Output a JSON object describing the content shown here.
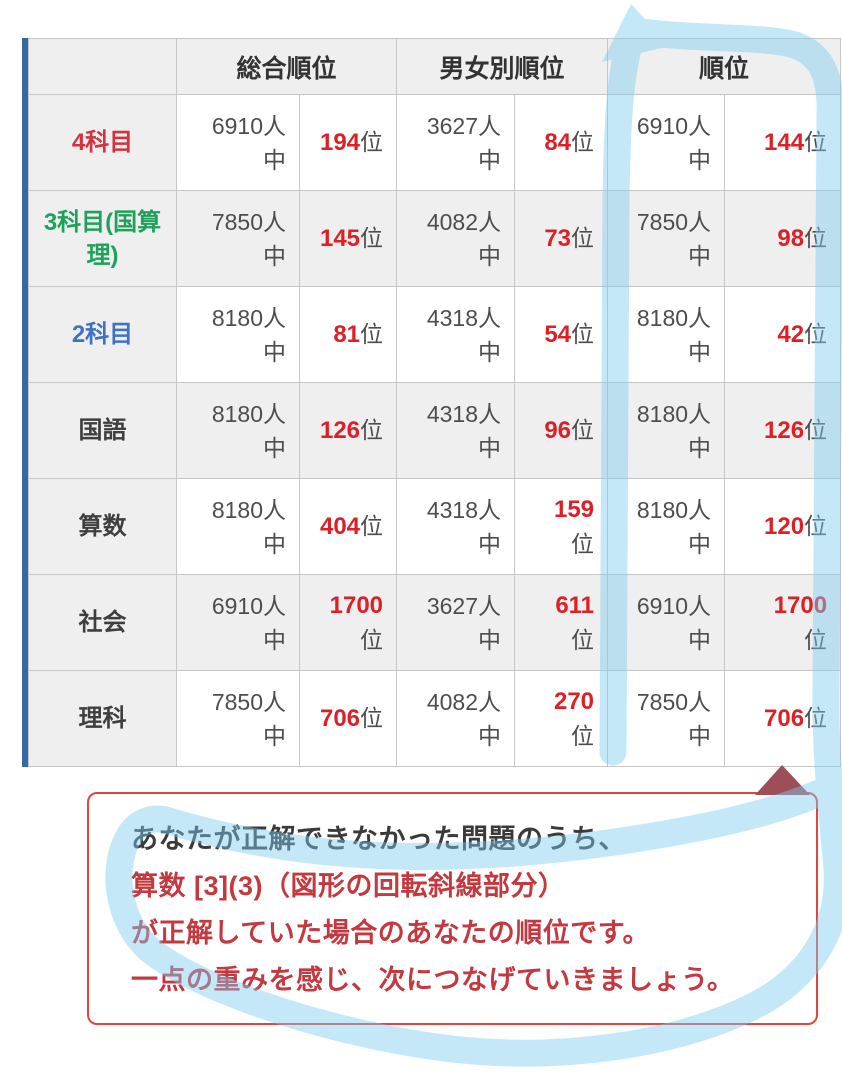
{
  "table": {
    "headers": [
      "総合順位",
      "男女別順位",
      "順位"
    ],
    "rank_suffix": "位",
    "rank_color": "#dd1f26",
    "rows": [
      {
        "label": "4科目",
        "label_color": "#d5323f",
        "cells": [
          {
            "count": "6910人中",
            "rank": "194",
            "wrap": false
          },
          {
            "count": "3627人中",
            "rank": "84",
            "wrap": false
          },
          {
            "count": "6910人中",
            "rank": "144",
            "wrap": false
          }
        ]
      },
      {
        "label": "3科目(国算理)",
        "label_color": "#1fa15b",
        "cells": [
          {
            "count": "7850人中",
            "rank": "145",
            "wrap": false
          },
          {
            "count": "4082人中",
            "rank": "73",
            "wrap": false
          },
          {
            "count": "7850人中",
            "rank": "98",
            "wrap": false
          }
        ]
      },
      {
        "label": "2科目",
        "label_color": "#3e73c4",
        "cells": [
          {
            "count": "8180人中",
            "rank": "81",
            "wrap": false
          },
          {
            "count": "4318人中",
            "rank": "54",
            "wrap": false
          },
          {
            "count": "8180人中",
            "rank": "42",
            "wrap": false
          }
        ]
      },
      {
        "label": "国語",
        "label_color": "#3f3f3f",
        "cells": [
          {
            "count": "8180人中",
            "rank": "126",
            "wrap": false
          },
          {
            "count": "4318人中",
            "rank": "96",
            "wrap": false
          },
          {
            "count": "8180人中",
            "rank": "126",
            "wrap": false
          }
        ]
      },
      {
        "label": "算数",
        "label_color": "#3f3f3f",
        "cells": [
          {
            "count": "8180人中",
            "rank": "404",
            "wrap": false
          },
          {
            "count": "4318人中",
            "rank": "159",
            "wrap": true
          },
          {
            "count": "8180人中",
            "rank": "120",
            "wrap": false
          }
        ]
      },
      {
        "label": "社会",
        "label_color": "#3f3f3f",
        "cells": [
          {
            "count": "6910人中",
            "rank": "1700",
            "wrap": true
          },
          {
            "count": "3627人中",
            "rank": "611",
            "wrap": true
          },
          {
            "count": "6910人中",
            "rank": "1700",
            "wrap": true
          }
        ]
      },
      {
        "label": "理科",
        "label_color": "#3f3f3f",
        "cells": [
          {
            "count": "7850人中",
            "rank": "706",
            "wrap": false
          },
          {
            "count": "4082人中",
            "rank": "270",
            "wrap": true
          },
          {
            "count": "7850人中",
            "rank": "706",
            "wrap": false
          }
        ]
      }
    ]
  },
  "note": {
    "lines": [
      {
        "text": "あなたが正解できなかった問題のうち、",
        "color": "#3a3a3a"
      },
      {
        "text": "算数 [3](3)（図形の回転斜線部分）",
        "color": "#c3393f"
      },
      {
        "text": "が正解していた場合のあなたの順位です。",
        "color": "#c3393f"
      },
      {
        "text": "一点の重みを感じ、次につなげていきましょう。",
        "color": "#c3393f"
      }
    ],
    "border_color": "#e2453f"
  },
  "decorations": {
    "highlight_color": "#7fcdf0",
    "pointer_color": "#9d4f58",
    "side_bar_color": "#35699f"
  }
}
